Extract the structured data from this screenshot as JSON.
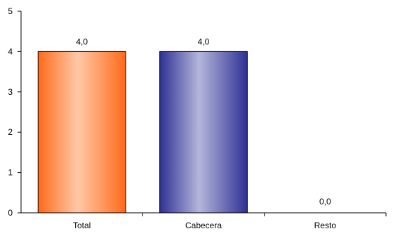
{
  "chart_data": {
    "type": "bar",
    "categories": [
      "Total",
      "Cabecera",
      "Resto"
    ],
    "values": [
      4.0,
      4.0,
      0.0
    ],
    "data_labels": [
      "4,0",
      "4,0",
      "0,0"
    ],
    "yticks": [
      0,
      1,
      2,
      3,
      4,
      5
    ],
    "ytick_labels": [
      "0",
      "1",
      "2",
      "3",
      "4",
      "5"
    ],
    "ylim": [
      0,
      5
    ],
    "grid": false,
    "legend": "none",
    "bar_colors": [
      {
        "edge": "#ff6a1a",
        "center": "#ffc9a6"
      },
      {
        "edge": "#2e3192",
        "center": "#b4b6dc"
      },
      {
        "edge": "#888888",
        "center": "#cccccc"
      }
    ],
    "axis_color": "#000000"
  }
}
